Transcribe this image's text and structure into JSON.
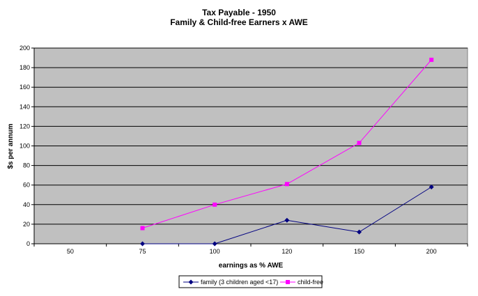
{
  "chart_data": {
    "type": "line",
    "title": "Tax Payable - 1950",
    "subtitle": "Family & Child-free Earners x AWE",
    "xlabel": "earnings as % AWE",
    "ylabel": "$s per annum",
    "categories": [
      "50",
      "75",
      "100",
      "120",
      "150",
      "200"
    ],
    "ylim": [
      0,
      200
    ],
    "yticks": [
      0,
      20,
      40,
      60,
      80,
      100,
      120,
      140,
      160,
      180,
      200
    ],
    "grid": true,
    "plot_background": "#c0c0c0",
    "legend_position": "bottom",
    "series": [
      {
        "name": "family (3 children aged <17)",
        "color": "#000080",
        "marker": "diamond",
        "values": [
          null,
          0,
          0,
          24,
          12,
          58
        ]
      },
      {
        "name": "child-free",
        "color": "#ff00ff",
        "marker": "square",
        "values": [
          null,
          16,
          40,
          61,
          103,
          188
        ]
      }
    ]
  }
}
